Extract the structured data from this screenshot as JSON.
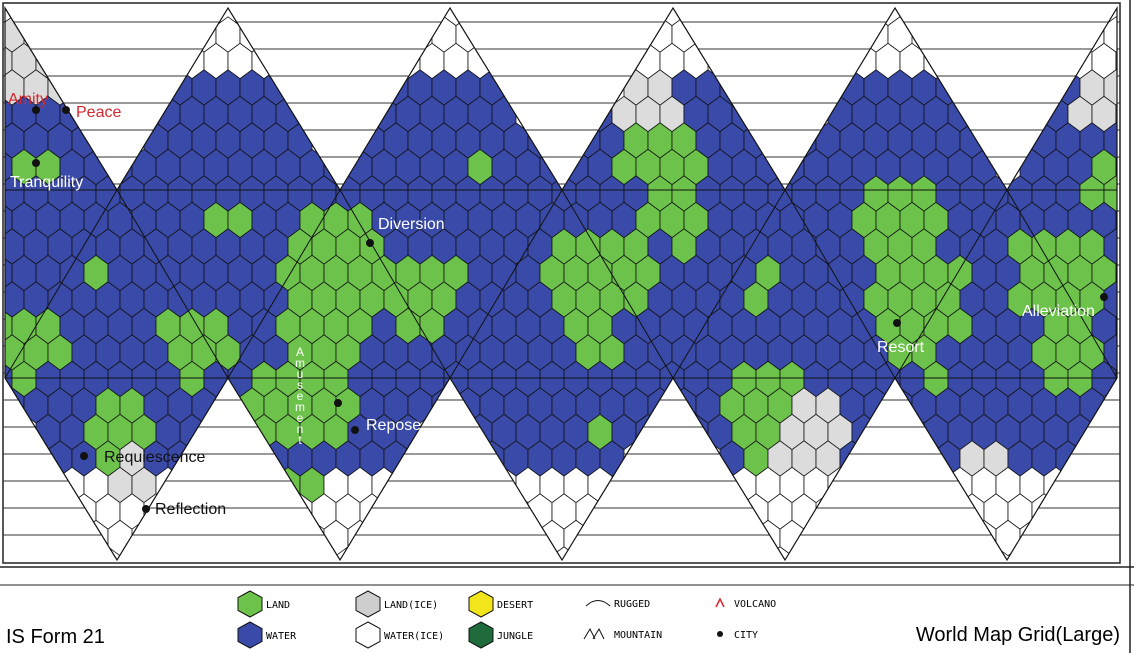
{
  "cities": [
    {
      "label": "Amity"
    },
    {
      "label": "Peace"
    },
    {
      "label": "Tranquility"
    },
    {
      "label": "Diversion"
    },
    {
      "label": "Amusement"
    },
    {
      "label": "Repose"
    },
    {
      "label": "Requiescence"
    },
    {
      "label": "Reflection"
    },
    {
      "label": "Resort"
    },
    {
      "label": "Alleviation"
    }
  ],
  "legend": [
    {
      "label": "LAND"
    },
    {
      "label": "WATER"
    },
    {
      "label": "LAND(ICE)"
    },
    {
      "label": "WATER(ICE)"
    },
    {
      "label": "DESERT"
    },
    {
      "label": "JUNGLE"
    },
    {
      "label": "RUGGED"
    },
    {
      "label": "MOUNTAIN"
    },
    {
      "label": "VOLCANO"
    },
    {
      "label": "CITY"
    }
  ],
  "form": "IS Form 21",
  "title": "World Map Grid(Large)"
}
